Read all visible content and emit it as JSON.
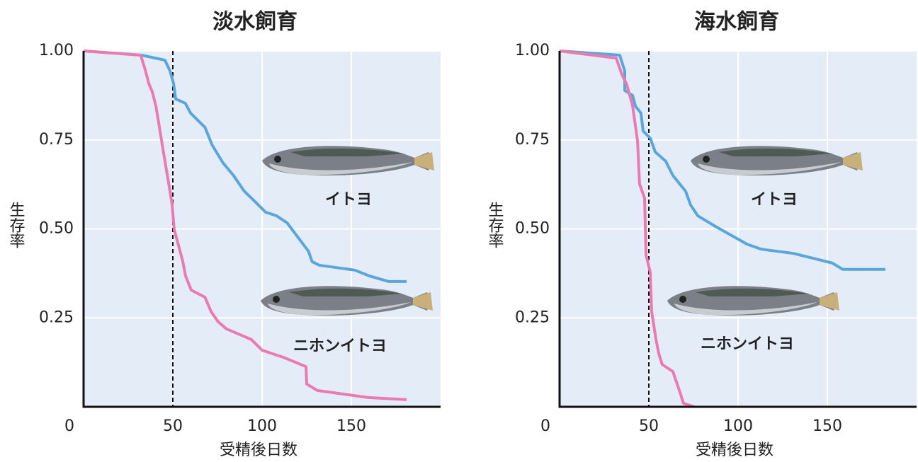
{
  "chart_data": [
    {
      "type": "line",
      "title": "淡水飼育",
      "x_label": "受精後日数",
      "y_label": "生存率",
      "xlim": [
        0,
        200
      ],
      "ylim": [
        0,
        1
      ],
      "xticks": [
        0,
        50,
        100,
        150
      ],
      "yticks": [
        0.25,
        {
          "value": 0.5,
          "label": "0.50"
        },
        0.75,
        {
          "value": 1,
          "label": "1.00"
        }
      ],
      "grid": true,
      "vline": 50,
      "series": [
        {
          "name": "イトヨ",
          "color": "#5aa6db",
          "x": [
            0,
            32.5,
            45.6,
            48.4,
            50.4,
            51.6,
            57,
            60,
            68,
            72,
            78,
            84,
            90,
            96,
            102,
            108,
            114,
            120,
            126,
            128,
            132,
            152,
            160,
            171,
            181
          ],
          "values": [
            1,
            0.988,
            0.974,
            0.944,
            0.909,
            0.865,
            0.853,
            0.825,
            0.785,
            0.736,
            0.686,
            0.65,
            0.606,
            0.577,
            0.547,
            0.537,
            0.517,
            0.477,
            0.437,
            0.408,
            0.398,
            0.384,
            0.368,
            0.352,
            0.352
          ]
        },
        {
          "name": "ニホンイトヨ",
          "color": "#ea7bb0",
          "x": [
            0,
            32,
            34.5,
            36.5,
            38.5,
            40.5,
            42.5,
            44.4,
            46.4,
            48.4,
            49.6,
            50.8,
            53,
            55.6,
            57.1,
            60.3,
            68,
            71.4,
            75.4,
            80,
            94,
            100,
            112,
            124.6,
            125,
            131,
            159.5,
            181
          ],
          "values": [
            1,
            0.988,
            0.948,
            0.909,
            0.885,
            0.845,
            0.785,
            0.726,
            0.666,
            0.606,
            0.567,
            0.497,
            0.457,
            0.408,
            0.368,
            0.328,
            0.308,
            0.268,
            0.239,
            0.219,
            0.189,
            0.159,
            0.139,
            0.113,
            0.064,
            0.046,
            0.026,
            0.02
          ]
        }
      ]
    },
    {
      "type": "line",
      "title": "海水飼育",
      "x_label": "受精後日数",
      "y_label": "生存率",
      "xlim": [
        0,
        200
      ],
      "ylim": [
        0,
        1
      ],
      "xticks": [
        0,
        50,
        100,
        150
      ],
      "yticks": [
        0.25,
        {
          "value": 0.5,
          "label": "0.50"
        },
        0.75,
        {
          "value": 1,
          "label": "1.00"
        }
      ],
      "grid": true,
      "vline": 50,
      "series": [
        {
          "name": "イトヨ",
          "color": "#5aa6db",
          "x": [
            0,
            33.7,
            36.5,
            36.5,
            40.9,
            42.5,
            45.6,
            46.8,
            50.8,
            53.6,
            59.5,
            63.5,
            70.6,
            73.4,
            77.4,
            87.3,
            105,
            113,
            131,
            152.8,
            158.7,
            182.5
          ],
          "values": [
            1,
            0.988,
            0.944,
            0.889,
            0.875,
            0.845,
            0.825,
            0.775,
            0.755,
            0.716,
            0.69,
            0.65,
            0.606,
            0.567,
            0.537,
            0.507,
            0.457,
            0.443,
            0.431,
            0.404,
            0.386,
            0.386
          ]
        },
        {
          "name": "ニホンイトヨ",
          "color": "#ea7bb0",
          "x": [
            0,
            31.7,
            34.9,
            37.7,
            40.9,
            42.5,
            43.7,
            44.8,
            47.6,
            48.4,
            50.8,
            51.6,
            54,
            55.6,
            57.5,
            63.5,
            67.5,
            69.4,
            75.4
          ],
          "values": [
            1,
            0.98,
            0.934,
            0.905,
            0.845,
            0.789,
            0.746,
            0.626,
            0.586,
            0.427,
            0.378,
            0.268,
            0.189,
            0.149,
            0.119,
            0.099,
            0.04,
            0.01,
            0
          ]
        }
      ]
    }
  ]
}
